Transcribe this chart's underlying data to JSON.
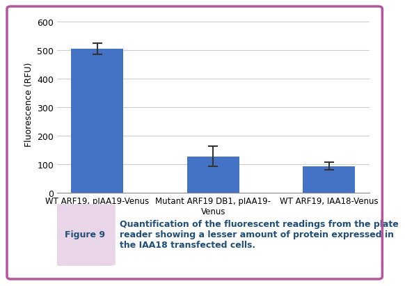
{
  "categories": [
    "WT ARF19, pIAA19-Venus",
    "Mutant ARF19 DB1, pIAA19-\nVenus",
    "WT ARF19, IAA18-Venus"
  ],
  "values": [
    505,
    127,
    93
  ],
  "errors": [
    20,
    35,
    13
  ],
  "bar_color": "#4472c4",
  "ylabel": "Fluorescence (RFU)",
  "ylim": [
    0,
    620
  ],
  "yticks": [
    0,
    100,
    200,
    300,
    400,
    500,
    600
  ],
  "grid_color": "#cccccc",
  "background_color": "#ffffff",
  "border_color": "#b5559b",
  "figure9_bg": "#e8d5e8",
  "figure9_label": "Figure 9",
  "caption": "Quantification of the fluorescent readings from the plate\nreader showing a lesser amount of protein expressed in\nthe IAA18 transfected cells.",
  "caption_color": "#1f4e79",
  "figure9_color": "#1f4e79"
}
